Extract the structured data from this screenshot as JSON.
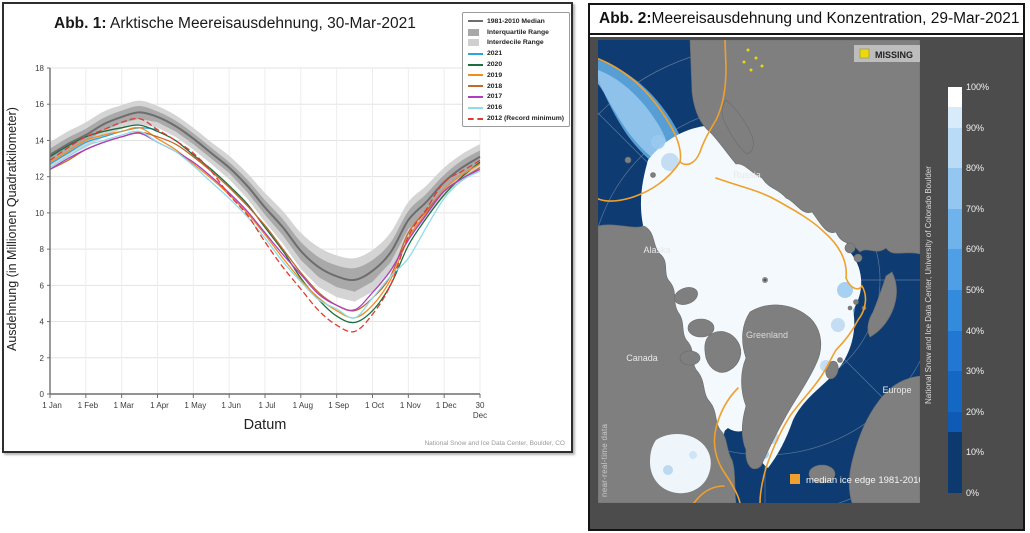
{
  "fig1": {
    "title_prefix": "Abb. 1:",
    "title_rest": " Arktische Meereisausdehnung, 30-Mar-2021",
    "xlabel": "Datum",
    "ylabel": "Ausdehnung (in Millionen Quadratkilometer)",
    "credit": "National Snow and Ice Data Center, Boulder, CO",
    "legend": [
      {
        "type": "line",
        "color": "#6d6d6d",
        "label": "1981-2010 Median"
      },
      {
        "type": "rect",
        "color": "#a8a8a8",
        "label": "Interquartile Range"
      },
      {
        "type": "rect",
        "color": "#cfcfcf",
        "label": "Interdecile Range"
      },
      {
        "type": "line",
        "color": "#2ea3dc",
        "label": "2021"
      },
      {
        "type": "line",
        "color": "#1b6e3e",
        "label": "2020"
      },
      {
        "type": "line",
        "color": "#f08c22",
        "label": "2019"
      },
      {
        "type": "line",
        "color": "#bf6a2b",
        "label": "2018"
      },
      {
        "type": "line",
        "color": "#ae3ec1",
        "label": "2017"
      },
      {
        "type": "line",
        "color": "#8edce8",
        "label": "2016"
      },
      {
        "type": "dash",
        "color": "#e23b32",
        "label": "2012 (Record minimum)"
      }
    ]
  },
  "fig2": {
    "title_prefix": "Abb. 2:",
    "title_rest": " Meereisausdehnung und Konzentration, 29-Mar-2021",
    "missing_label": "MISSING",
    "missing_color": "#e9d812",
    "edge_legend": "median ice edge 1981-2010",
    "edge_color": "#f0a02c",
    "left_vertical": "near-real-time data",
    "right_vertical": "National Snow and Ice Data Center, University of Colorado Boulder",
    "map_labels": {
      "russia": "Russia",
      "alaska": "Alaska",
      "canada": "Canada",
      "greenland": "Greenland",
      "europe": "Europe"
    },
    "colorbar": {
      "ticks": [
        "0%",
        "10%",
        "20%",
        "30%",
        "40%",
        "50%",
        "60%",
        "70%",
        "80%",
        "90%",
        "100%"
      ],
      "stops": [
        {
          "from": 0,
          "to": 15,
          "color": "#0d3a6e"
        },
        {
          "from": 15,
          "to": 20,
          "color": "#0f5ab5"
        },
        {
          "from": 20,
          "to": 30,
          "color": "#1567c4"
        },
        {
          "from": 30,
          "to": 40,
          "color": "#2277d2"
        },
        {
          "from": 40,
          "to": 50,
          "color": "#338bdd"
        },
        {
          "from": 50,
          "to": 60,
          "color": "#4f9fe6"
        },
        {
          "from": 60,
          "to": 70,
          "color": "#6fb3ec"
        },
        {
          "from": 70,
          "to": 80,
          "color": "#93c7f1"
        },
        {
          "from": 80,
          "to": 90,
          "color": "#b9dbf6"
        },
        {
          "from": 90,
          "to": 95,
          "color": "#d8ebfa"
        },
        {
          "from": 95,
          "to": 100,
          "color": "#ffffff"
        }
      ]
    }
  },
  "chart_data": [
    {
      "type": "line",
      "title": "Abb. 1: Arktische Meereisausdehnung, 30-Mar-2021",
      "xlabel": "Datum",
      "ylabel": "Ausdehnung (in Millionen Quadratkilometer)",
      "ylim": [
        0,
        18
      ],
      "grid": true,
      "legend_position": "upper right",
      "xticks": [
        "1 Jan",
        "1 Feb",
        "1 Mar",
        "1 Apr",
        "1 May",
        "1 Jun",
        "1 Jul",
        "1 Aug",
        "1 Sep",
        "1 Oct",
        "1 Nov",
        "1 Dec",
        "30 Dec"
      ],
      "yticks": [
        0,
        2,
        4,
        6,
        8,
        10,
        12,
        14,
        16,
        18
      ],
      "x_unit": "months since 1 Jan (semi-monthly samples)",
      "x": [
        0,
        0.5,
        1,
        1.5,
        2,
        2.5,
        3,
        3.5,
        4,
        4.5,
        5,
        5.5,
        6,
        6.5,
        7,
        7.5,
        8,
        8.5,
        9,
        9.5,
        10,
        10.5,
        11,
        11.5,
        12
      ],
      "median_1981_2010": [
        13.2,
        13.8,
        14.3,
        14.9,
        15.3,
        15.55,
        15.3,
        14.8,
        14.1,
        13.3,
        12.5,
        11.5,
        10.3,
        9.2,
        7.9,
        7.0,
        6.5,
        6.3,
        6.8,
        7.8,
        9.6,
        10.6,
        11.7,
        12.5,
        13.1
      ],
      "interquartile_halfwidth": [
        0.35,
        0.35,
        0.35,
        0.35,
        0.35,
        0.35,
        0.3,
        0.3,
        0.3,
        0.3,
        0.3,
        0.35,
        0.4,
        0.45,
        0.5,
        0.55,
        0.6,
        0.65,
        0.6,
        0.55,
        0.5,
        0.45,
        0.4,
        0.4,
        0.35
      ],
      "interdecile_halfwidth": [
        0.7,
        0.7,
        0.7,
        0.7,
        0.65,
        0.65,
        0.6,
        0.6,
        0.6,
        0.6,
        0.65,
        0.7,
        0.8,
        0.9,
        1.0,
        1.1,
        1.15,
        1.2,
        1.15,
        1.1,
        1.0,
        0.9,
        0.8,
        0.75,
        0.7
      ],
      "series": [
        {
          "name": "2021",
          "color": "#2ea3dc",
          "dash": false,
          "values": [
            12.7,
            13.3,
            13.9,
            14.2,
            14.5,
            14.7,
            14.6,
            null,
            null,
            null,
            null,
            null,
            null,
            null,
            null,
            null,
            null,
            null,
            null,
            null,
            null,
            null,
            null,
            null,
            null
          ]
        },
        {
          "name": "2020",
          "color": "#1b6e3e",
          "dash": false,
          "values": [
            13.1,
            13.7,
            14.2,
            14.5,
            14.7,
            14.85,
            14.5,
            14.0,
            13.2,
            12.4,
            11.5,
            10.5,
            9.2,
            7.9,
            6.4,
            5.2,
            4.3,
            3.95,
            4.6,
            6.0,
            8.2,
            9.7,
            11.0,
            12.0,
            12.8
          ]
        },
        {
          "name": "2019",
          "color": "#f08c22",
          "dash": false,
          "values": [
            12.8,
            13.4,
            14.0,
            14.3,
            14.5,
            14.7,
            14.1,
            13.5,
            12.7,
            11.9,
            11.0,
            10.0,
            8.8,
            7.5,
            6.3,
            5.3,
            4.6,
            4.2,
            4.9,
            6.3,
            8.6,
            10.0,
            11.3,
            12.1,
            12.7
          ]
        },
        {
          "name": "2018",
          "color": "#bf6a2b",
          "dash": false,
          "values": [
            12.4,
            12.9,
            13.5,
            13.9,
            14.2,
            14.45,
            14.2,
            13.8,
            13.1,
            12.3,
            11.4,
            10.4,
            9.3,
            8.0,
            6.7,
            5.6,
            4.9,
            4.6,
            5.3,
            6.5,
            8.9,
            10.1,
            11.2,
            11.9,
            12.5
          ]
        },
        {
          "name": "2017",
          "color": "#ae3ec1",
          "dash": false,
          "values": [
            12.4,
            13.0,
            13.5,
            13.9,
            14.2,
            14.4,
            13.9,
            13.4,
            12.8,
            12.0,
            11.1,
            10.1,
            8.9,
            7.7,
            6.6,
            5.5,
            4.9,
            4.65,
            5.6,
            6.8,
            8.5,
            9.9,
            11.2,
            11.9,
            12.4
          ]
        },
        {
          "name": "2016",
          "color": "#8edce8",
          "dash": false,
          "values": [
            12.5,
            13.1,
            13.7,
            14.0,
            14.3,
            14.5,
            13.9,
            13.4,
            12.6,
            11.7,
            10.8,
            9.8,
            8.6,
            7.3,
            6.2,
            5.2,
            4.7,
            4.2,
            5.3,
            6.5,
            7.5,
            9.2,
            10.8,
            11.8,
            12.3
          ]
        },
        {
          "name": "2012 (Record minimum)",
          "color": "#e23b32",
          "dash": true,
          "values": [
            12.9,
            13.6,
            14.2,
            14.6,
            15.0,
            15.2,
            14.6,
            14.0,
            13.3,
            12.3,
            11.0,
            9.9,
            8.4,
            7.0,
            5.8,
            4.6,
            3.8,
            3.45,
            4.4,
            6.0,
            8.7,
            10.2,
            11.7,
            12.3,
            12.9
          ]
        }
      ]
    },
    {
      "type": "heatmap",
      "title": "Abb. 2: Meereisausdehnung und Konzentration, 29-Mar-2021",
      "variable": "Arctic sea ice concentration (%)",
      "colorbar_ticks": [
        "0%",
        "10%",
        "20%",
        "30%",
        "40%",
        "50%",
        "60%",
        "70%",
        "80%",
        "90%",
        "100%"
      ],
      "region_labels": [
        "Russia",
        "Alaska",
        "Canada",
        "Greenland",
        "Europe"
      ],
      "annotations": [
        "MISSING",
        "median ice edge 1981-2010",
        "near-real-time data",
        "National Snow and Ice Data Center, University of Colorado Boulder"
      ]
    }
  ]
}
